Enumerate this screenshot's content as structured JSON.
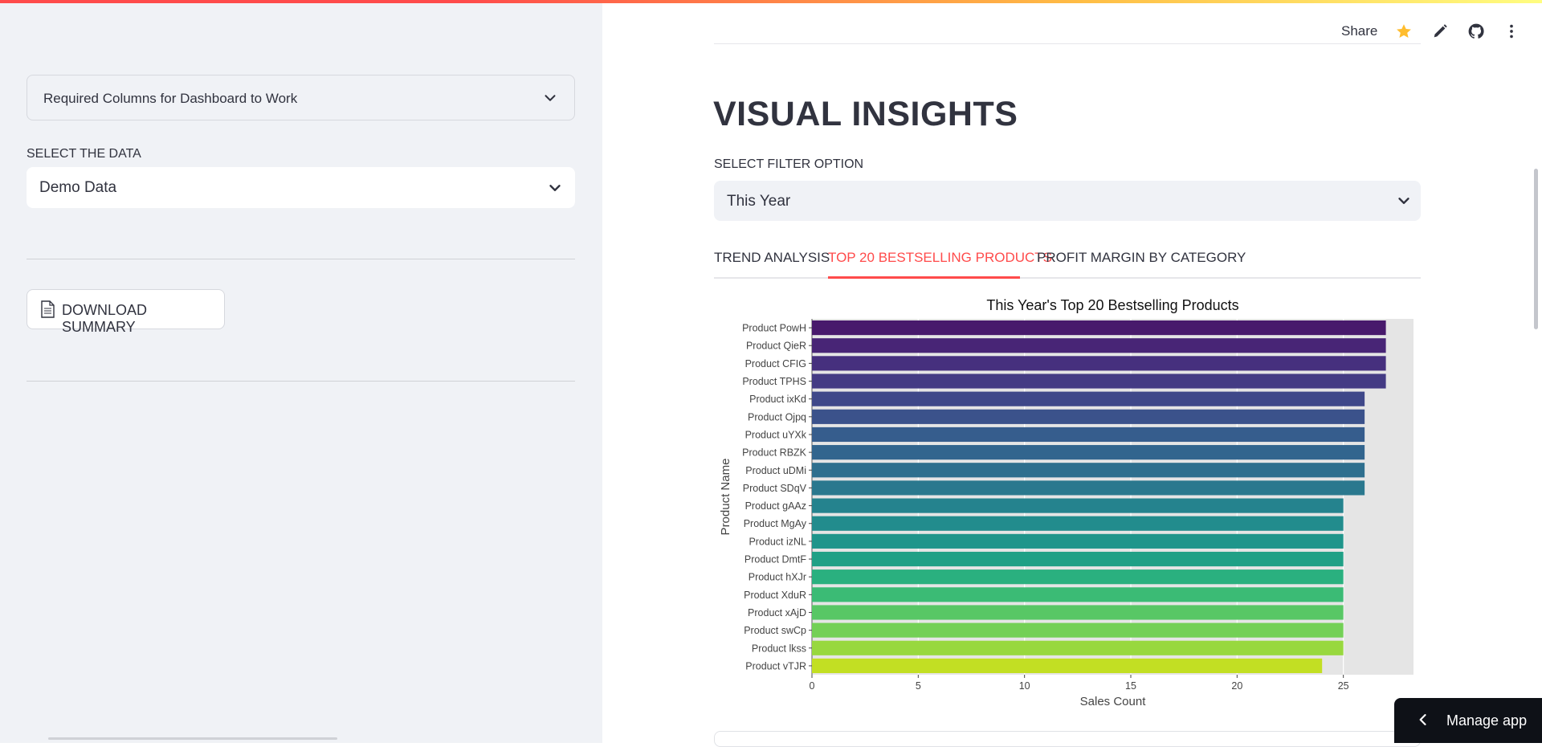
{
  "sidebar": {
    "expander_label": "Required Columns for Dashboard to Work",
    "select_label": "SELECT THE DATA",
    "select_value": "Demo Data",
    "download_button": "DOWNLOAD SUMMARY"
  },
  "header": {
    "share": "Share",
    "icons": [
      "star-icon",
      "edit-pencil-icon",
      "github-icon",
      "more-vertical-icon"
    ]
  },
  "main": {
    "title": "VISUAL INSIGHTS",
    "filter_label": "SELECT FILTER OPTION",
    "filter_value": "This Year",
    "tabs": [
      {
        "label": "TREND ANALYSIS",
        "active": false
      },
      {
        "label": "TOP 20 BESTSELLING PRODUCTS",
        "active": true
      },
      {
        "label": "PROFIT MARGIN BY CATEGORY",
        "active": false
      }
    ]
  },
  "manage_app": "Manage app",
  "colors": {
    "accent": "#ff4b4b",
    "sidebar_bg": "#f0f2f6",
    "text": "#31333f",
    "manage_bg": "#0e1117"
  },
  "chart_data": {
    "type": "bar",
    "orientation": "horizontal",
    "title": "This Year's Top 20 Bestselling Products",
    "xlabel": "Sales Count",
    "ylabel": "Product Name",
    "xlim": [
      0,
      28.3
    ],
    "xticks": [
      0,
      5,
      10,
      15,
      20,
      25
    ],
    "grid": true,
    "categories": [
      "Product PowH",
      "Product QieR",
      "Product CFIG",
      "Product TPHS",
      "Product ixKd",
      "Product Ojpq",
      "Product uYXk",
      "Product RBZK",
      "Product uDMi",
      "Product SDqV",
      "Product gAAz",
      "Product MgAy",
      "Product izNL",
      "Product DmtF",
      "Product hXJr",
      "Product XduR",
      "Product xAjD",
      "Product swCp",
      "Product lkss",
      "Product vTJR"
    ],
    "values": [
      27,
      27,
      27,
      27,
      26,
      26,
      26,
      26,
      26,
      26,
      25,
      25,
      25,
      25,
      25,
      25,
      25,
      25,
      25,
      24
    ],
    "colors": [
      "#481a6c",
      "#482576",
      "#46307e",
      "#443b84",
      "#3f4889",
      "#3b528b",
      "#365d8d",
      "#32658e",
      "#2e6f8e",
      "#2a788e",
      "#25838e",
      "#228c8d",
      "#1f958b",
      "#20a086",
      "#2ab07f",
      "#3bbb75",
      "#58c765",
      "#73d056",
      "#98d83e",
      "#c2df23"
    ]
  }
}
